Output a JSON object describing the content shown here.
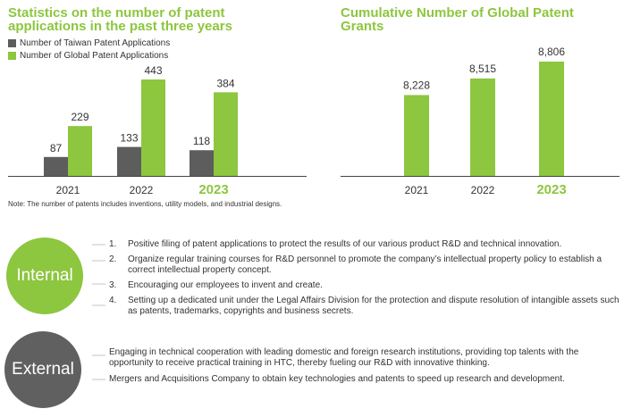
{
  "chart_data": [
    {
      "type": "bar",
      "title": "Statistics on the number of patent applications in the past three years",
      "categories": [
        "2021",
        "2022",
        "2023"
      ],
      "series": [
        {
          "name": "Number of Taiwan Patent Applications",
          "values": [
            87,
            133,
            118
          ],
          "color": "#5d5d5d"
        },
        {
          "name": "Number of Global Patent Applications",
          "values": [
            229,
            443,
            384
          ],
          "color": "#8dc63f"
        }
      ],
      "ylim": [
        0,
        443
      ],
      "highlight_category": "2023",
      "legend": "top-left"
    },
    {
      "type": "bar",
      "title": "Cumulative Number of Global Patent Grants",
      "categories": [
        "2021",
        "2022",
        "2023"
      ],
      "series": [
        {
          "name": "",
          "values": [
            8228,
            8515,
            8806
          ],
          "labels": [
            "8,228",
            "8,515",
            "8,806"
          ],
          "color": "#8dc63f"
        }
      ],
      "ylim": [
        6830,
        8806
      ],
      "highlight_category": "2023"
    }
  ],
  "note": "Note: The number of patents includes inventions, utility models, and industrial designs.",
  "internal": {
    "label": "Internal",
    "items": [
      {
        "num": "1.",
        "text": "Positive filing of patent applications to protect the results of our various product R&D and technical innovation."
      },
      {
        "num": "2.",
        "text": "Organize regular training courses for R&D personnel to promote the company’s intellectual property policy to establish a correct intellectual property concept."
      },
      {
        "num": "3.",
        "text": "Encouraging our employees to invent and create."
      },
      {
        "num": "4.",
        "text": "Setting up a dedicated unit under the Legal Affairs Division for the protection and dispute resolution of intangible assets such as patents, trademarks, copyrights and business secrets."
      }
    ]
  },
  "external": {
    "label": "External",
    "items": [
      "Engaging in technical cooperation with leading domestic and foreign research institutions, providing top talents with the opportunity to receive practical training in HTC, thereby fueling our R&D with innovative thinking.",
      "Mergers and Acquisitions Company to obtain key technologies and patents to speed up research and development."
    ]
  },
  "colors": {
    "accent": "#8dc63f",
    "dark": "#5d5d5d",
    "external": "#606060"
  }
}
